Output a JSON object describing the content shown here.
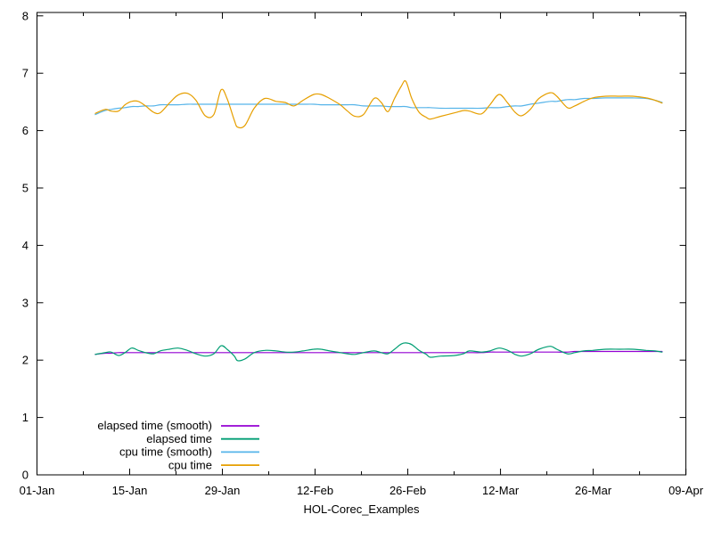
{
  "colors": {
    "background": "#ffffff",
    "axis": "#000000",
    "text": "#000000"
  },
  "chart_data": {
    "type": "line",
    "title": "",
    "xlabel": "HOL-Corec_Examples",
    "ylabel": "",
    "grid": "off",
    "legend_position": "bottom-left",
    "x_axis": {
      "range_days": [
        0,
        98
      ],
      "major_ticks": [
        {
          "day": 0,
          "label": "01-Jan"
        },
        {
          "day": 14,
          "label": "15-Jan"
        },
        {
          "day": 28,
          "label": "29-Jan"
        },
        {
          "day": 42,
          "label": "12-Feb"
        },
        {
          "day": 56,
          "label": "26-Feb"
        },
        {
          "day": 70,
          "label": "12-Mar"
        },
        {
          "day": 84,
          "label": "26-Mar"
        },
        {
          "day": 98,
          "label": "09-Apr"
        }
      ],
      "minor_tick_days": [
        7,
        21,
        35,
        49,
        63,
        77,
        91
      ]
    },
    "y_axis": {
      "range": [
        0,
        8
      ],
      "major_ticks": [
        0,
        1,
        2,
        3,
        4,
        5,
        6,
        7,
        8
      ]
    },
    "x_days": [
      8.8,
      10.3,
      11.2,
      12.3,
      13.3,
      14.3,
      15.3,
      16.4,
      17.6,
      18.6,
      20.0,
      21.3,
      22.7,
      24.0,
      25.4,
      26.7,
      27.8,
      28.7,
      29.8,
      30.3,
      31.4,
      32.8,
      34.4,
      36.1,
      37.5,
      38.8,
      40.2,
      41.8,
      42.9,
      44.2,
      45.8,
      46.9,
      48.0,
      49.3,
      50.9,
      52.0,
      53.0,
      54.0,
      55.0,
      55.7,
      56.6,
      57.7,
      58.8,
      59.4,
      61.0,
      63.1,
      64.4,
      65.3,
      67.1,
      68.4,
      69.8,
      71.1,
      72.2,
      73.2,
      74.5,
      75.8,
      77.5,
      78.5,
      80.1,
      81.2,
      82.6,
      83.9,
      85.9,
      88.0,
      90.0,
      92.0,
      93.3,
      94.4
    ],
    "series": [
      {
        "name": "elapsed time (smooth)",
        "color": "#9400d3",
        "values": [
          2.1,
          2.12,
          2.12,
          2.13,
          2.13,
          2.13,
          2.13,
          2.13,
          2.13,
          2.13,
          2.13,
          2.13,
          2.13,
          2.13,
          2.13,
          2.13,
          2.13,
          2.13,
          2.13,
          2.13,
          2.13,
          2.13,
          2.13,
          2.13,
          2.13,
          2.13,
          2.13,
          2.13,
          2.13,
          2.13,
          2.13,
          2.13,
          2.13,
          2.13,
          2.13,
          2.13,
          2.13,
          2.13,
          2.13,
          2.13,
          2.13,
          2.13,
          2.13,
          2.13,
          2.13,
          2.13,
          2.13,
          2.13,
          2.13,
          2.14,
          2.14,
          2.14,
          2.14,
          2.14,
          2.14,
          2.14,
          2.14,
          2.14,
          2.14,
          2.15,
          2.15,
          2.15,
          2.15,
          2.15,
          2.15,
          2.15,
          2.15,
          2.15
        ]
      },
      {
        "name": "elapsed time",
        "color": "#009e73",
        "values": [
          2.1,
          2.13,
          2.14,
          2.08,
          2.13,
          2.21,
          2.17,
          2.13,
          2.11,
          2.16,
          2.19,
          2.21,
          2.17,
          2.11,
          2.07,
          2.11,
          2.25,
          2.19,
          2.07,
          1.99,
          2.02,
          2.13,
          2.17,
          2.16,
          2.14,
          2.14,
          2.16,
          2.19,
          2.19,
          2.16,
          2.13,
          2.11,
          2.1,
          2.13,
          2.16,
          2.13,
          2.11,
          2.19,
          2.28,
          2.3,
          2.27,
          2.17,
          2.1,
          2.05,
          2.07,
          2.08,
          2.11,
          2.16,
          2.14,
          2.16,
          2.21,
          2.17,
          2.1,
          2.07,
          2.11,
          2.19,
          2.24,
          2.19,
          2.11,
          2.13,
          2.16,
          2.17,
          2.19,
          2.19,
          2.19,
          2.17,
          2.16,
          2.14
        ]
      },
      {
        "name": "cpu time (smooth)",
        "color": "#56b4e9",
        "values": [
          6.28,
          6.35,
          6.37,
          6.39,
          6.4,
          6.42,
          6.42,
          6.43,
          6.43,
          6.45,
          6.45,
          6.45,
          6.46,
          6.46,
          6.46,
          6.46,
          6.46,
          6.46,
          6.46,
          6.46,
          6.46,
          6.46,
          6.46,
          6.46,
          6.46,
          6.46,
          6.46,
          6.46,
          6.45,
          6.45,
          6.45,
          6.45,
          6.45,
          6.43,
          6.43,
          6.43,
          6.42,
          6.42,
          6.42,
          6.42,
          6.4,
          6.4,
          6.4,
          6.4,
          6.39,
          6.39,
          6.39,
          6.39,
          6.39,
          6.4,
          6.4,
          6.42,
          6.43,
          6.43,
          6.46,
          6.48,
          6.51,
          6.51,
          6.54,
          6.54,
          6.56,
          6.56,
          6.57,
          6.57,
          6.57,
          6.56,
          6.53,
          6.49
        ]
      },
      {
        "name": "cpu time",
        "color": "#e69f00",
        "values": [
          6.3,
          6.37,
          6.34,
          6.34,
          6.45,
          6.51,
          6.51,
          6.43,
          6.32,
          6.31,
          6.48,
          6.62,
          6.65,
          6.53,
          6.26,
          6.28,
          6.71,
          6.56,
          6.18,
          6.06,
          6.09,
          6.39,
          6.56,
          6.51,
          6.49,
          6.43,
          6.53,
          6.63,
          6.63,
          6.56,
          6.45,
          6.34,
          6.25,
          6.28,
          6.56,
          6.49,
          6.33,
          6.56,
          6.77,
          6.86,
          6.56,
          6.32,
          6.23,
          6.2,
          6.25,
          6.31,
          6.35,
          6.34,
          6.29,
          6.45,
          6.63,
          6.48,
          6.32,
          6.26,
          6.37,
          6.56,
          6.66,
          6.6,
          6.4,
          6.43,
          6.51,
          6.57,
          6.6,
          6.6,
          6.6,
          6.57,
          6.53,
          6.48
        ]
      }
    ]
  }
}
